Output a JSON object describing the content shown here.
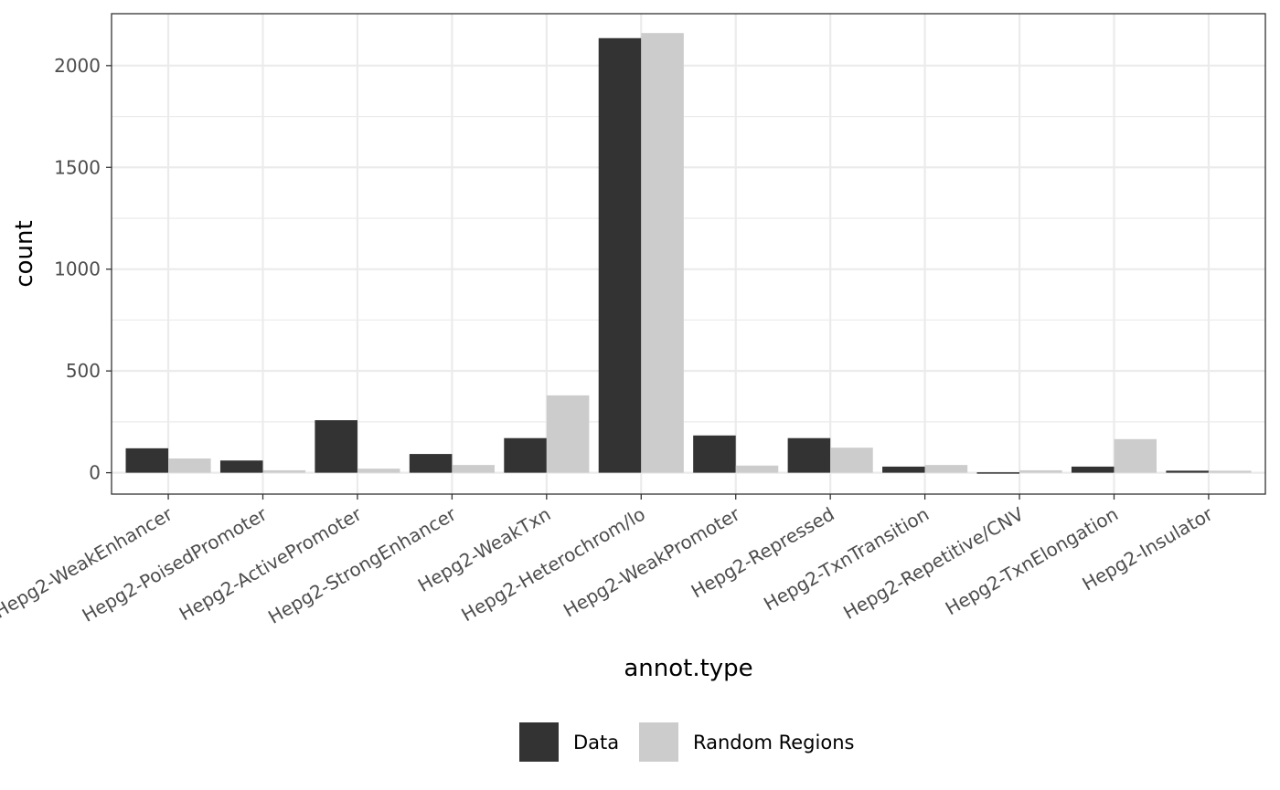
{
  "chart_data": {
    "type": "bar",
    "xlabel": "annot.type",
    "ylabel": "count",
    "ylim": [
      -105,
      2255
    ],
    "yticks": [
      0,
      500,
      1000,
      1500,
      2000
    ],
    "grid": true,
    "legend_position": "bottom",
    "categories": [
      "Hepg2-WeakEnhancer",
      "Hepg2-PoisedPromoter",
      "Hepg2-ActivePromoter",
      "Hepg2-StrongEnhancer",
      "Hepg2-WeakTxn",
      "Hepg2-Heterochrom/lo",
      "Hepg2-WeakPromoter",
      "Hepg2-Repressed",
      "Hepg2-TxnTransition",
      "Hepg2-Repetitive/CNV",
      "Hepg2-TxnElongation",
      "Hepg2-Insulator"
    ],
    "series": [
      {
        "name": "Data",
        "color": "#333333",
        "values": [
          120,
          60,
          258,
          92,
          170,
          2135,
          183,
          170,
          30,
          2,
          30,
          10
        ]
      },
      {
        "name": "Random Regions",
        "color": "#cccccc",
        "values": [
          70,
          12,
          20,
          38,
          380,
          2160,
          35,
          123,
          38,
          12,
          165,
          10
        ]
      }
    ]
  }
}
